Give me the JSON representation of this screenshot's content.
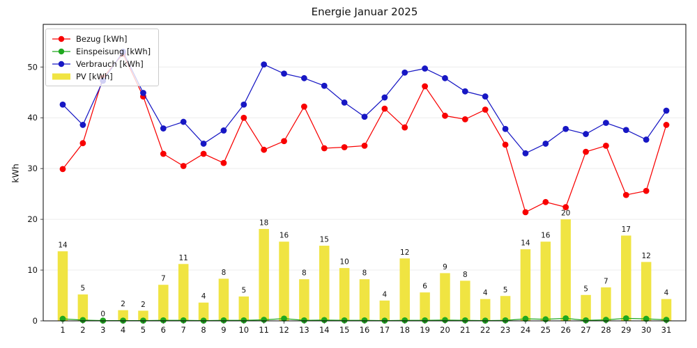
{
  "chart_data": {
    "type": "bar+line",
    "title": "Energie Januar 2025",
    "ylabel": "kWh",
    "xlabel": "",
    "categories": [
      "1",
      "2",
      "3",
      "4",
      "5",
      "6",
      "7",
      "8",
      "9",
      "10",
      "11",
      "12",
      "13",
      "14",
      "15",
      "16",
      "17",
      "18",
      "19",
      "20",
      "21",
      "22",
      "23",
      "24",
      "25",
      "26",
      "27",
      "28",
      "29",
      "30",
      "31"
    ],
    "yticks": [
      0,
      10,
      20,
      30,
      40,
      50
    ],
    "ylim": [
      0,
      58.4
    ],
    "grid": "horizontal",
    "legend_position": "upper-left",
    "series": [
      {
        "name": "Bezug [kWh]",
        "type": "line",
        "color": "#f80000",
        "values": [
          29.9,
          35.0,
          47.9,
          52.6,
          44.2,
          32.9,
          30.5,
          32.9,
          31.1,
          40.0,
          33.7,
          35.4,
          42.2,
          34.0,
          34.2,
          34.5,
          41.8,
          38.1,
          46.2,
          40.4,
          39.7,
          41.6,
          34.7,
          21.4,
          23.4,
          22.4,
          33.3,
          34.5,
          24.8,
          25.6,
          38.6
        ]
      },
      {
        "name": "Einspeisung [kWh]",
        "type": "line",
        "color": "#1fa81f",
        "values": [
          0.4,
          0.15,
          0.05,
          0.05,
          0.05,
          0.1,
          0.1,
          0.05,
          0.1,
          0.1,
          0.2,
          0.45,
          0.1,
          0.15,
          0.1,
          0.1,
          0.05,
          0.1,
          0.1,
          0.15,
          0.1,
          0.05,
          0.1,
          0.4,
          0.3,
          0.5,
          0.1,
          0.2,
          0.5,
          0.4,
          0.2
        ]
      },
      {
        "name": "Verbrauch [kWh]",
        "type": "line",
        "color": "#1717c4",
        "values": [
          42.6,
          38.6,
          47.3,
          53.0,
          44.9,
          37.9,
          39.2,
          34.9,
          37.5,
          42.6,
          50.5,
          48.7,
          47.8,
          46.3,
          43.0,
          40.2,
          44.0,
          48.9,
          49.7,
          47.8,
          45.2,
          44.2,
          37.8,
          33.0,
          34.9,
          37.8,
          36.8,
          39.0,
          37.6,
          35.7,
          41.4
        ]
      },
      {
        "name": "PV [kWh]",
        "type": "bar",
        "color": "#f0e442",
        "values": [
          13.7,
          5.2,
          0.15,
          2.1,
          2.0,
          7.1,
          11.2,
          3.6,
          8.3,
          4.8,
          18.1,
          15.6,
          8.2,
          14.8,
          10.4,
          8.2,
          4.0,
          12.3,
          5.6,
          9.4,
          7.9,
          4.3,
          4.9,
          14.1,
          15.6,
          20.0,
          5.1,
          6.6,
          16.8,
          11.6,
          4.3
        ],
        "bar_labels": [
          "14",
          "5",
          "0",
          "2",
          "2",
          "7",
          "11",
          "4",
          "8",
          "5",
          "18",
          "16",
          "8",
          "15",
          "10",
          "8",
          "4",
          "12",
          "6",
          "9",
          "8",
          "4",
          "5",
          "14",
          "16",
          "20",
          "5",
          "7",
          "17",
          "12",
          "4"
        ]
      }
    ]
  }
}
